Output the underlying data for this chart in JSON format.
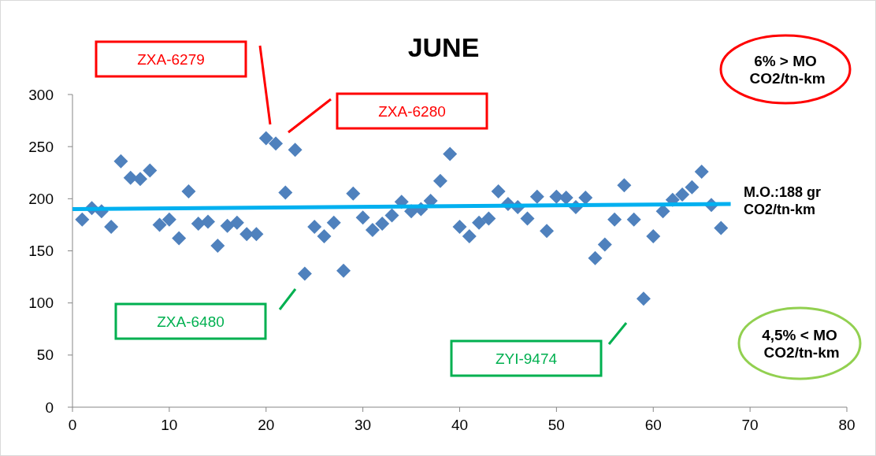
{
  "chart_data": {
    "type": "scatter",
    "title": "JUNE",
    "xlim": [
      0,
      80
    ],
    "xticks": [
      0,
      10,
      20,
      30,
      40,
      50,
      60,
      70,
      80
    ],
    "ylim": [
      0,
      300
    ],
    "yticks": [
      0,
      50,
      100,
      150,
      200,
      250,
      300
    ],
    "grid": false,
    "series": [
      {
        "color": "#4f81bd",
        "marker": "diamond",
        "x": [
          1,
          2,
          3,
          4,
          5,
          6,
          7,
          8,
          9,
          10,
          11,
          12,
          13,
          14,
          15,
          16,
          17,
          18,
          19,
          20,
          21,
          22,
          23,
          24,
          25,
          26,
          27,
          28,
          29,
          30,
          31,
          32,
          33,
          34,
          35,
          36,
          37,
          38,
          39,
          40,
          41,
          42,
          43,
          44,
          45,
          46,
          47,
          48,
          49,
          50,
          51,
          52,
          53,
          54,
          55,
          56,
          57,
          58,
          59,
          60,
          61,
          62,
          63,
          64,
          65,
          66,
          67
        ],
        "values": [
          180,
          191,
          188,
          173,
          236,
          220,
          219,
          227,
          175,
          180,
          162,
          207,
          176,
          178,
          155,
          174,
          177,
          166,
          166,
          258,
          253,
          206,
          247,
          128,
          173,
          164,
          177,
          131,
          205,
          182,
          170,
          176,
          184,
          197,
          188,
          190,
          198,
          217,
          243,
          173,
          164,
          177,
          181,
          207,
          195,
          192,
          181,
          202,
          169,
          202,
          201,
          192,
          201,
          143,
          156,
          180,
          213,
          180,
          104,
          164,
          188,
          199,
          204,
          211,
          226,
          194,
          172
        ]
      },
      {
        "type": "line",
        "color": "#00b0f0",
        "x": [
          0,
          68
        ],
        "values": [
          190,
          195
        ]
      }
    ],
    "annotations": [
      "M.O.:188 gr\nCO2/tn-km",
      "6% > MO\n CO2/tn-km",
      "4,5% < MO\n CO2/tn-km",
      "ZXA-6279",
      "ZXA-6280",
      "ZXA-6480",
      "ZYI-9474"
    ]
  }
}
